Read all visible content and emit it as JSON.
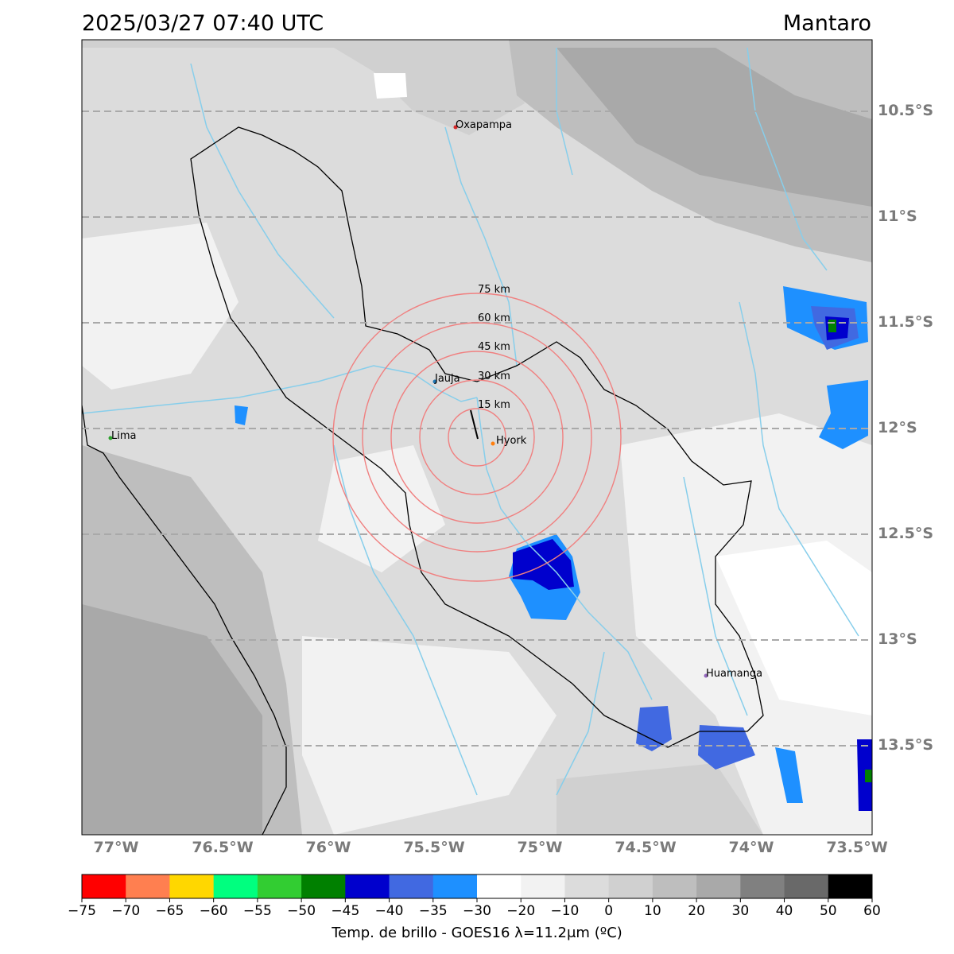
{
  "title": {
    "datetime": "2025/03/27 07:40 UTC",
    "region": "Mantaro"
  },
  "lat_labels": [
    "10.5°S",
    "11°S",
    "11.5°S",
    "12°S",
    "12.5°S",
    "13°S",
    "13.5°S"
  ],
  "lon_labels": [
    "77°W",
    "76.5°W",
    "76°W",
    "75.5°W",
    "75°W",
    "74.5°W",
    "74°W",
    "73.5°W"
  ],
  "cities": [
    {
      "name": "Oxapampa",
      "color": "#d62728"
    },
    {
      "name": "Jauja",
      "color": "#1f77b4"
    },
    {
      "name": "Hyork",
      "color": "#ff7f0e"
    },
    {
      "name": "Lima",
      "color": "#2ca02c"
    },
    {
      "name": "Huamanga",
      "color": "#9467bd"
    }
  ],
  "rings": [
    "15 km",
    "30 km",
    "45 km",
    "60 km",
    "75 km"
  ],
  "colorbar": {
    "ticks": [
      "−75",
      "−70",
      "−65",
      "−60",
      "−55",
      "−50",
      "−45",
      "−40",
      "−35",
      "−30",
      "−20",
      "−10",
      "0",
      "10",
      "20",
      "30",
      "40",
      "50",
      "60"
    ],
    "colors": [
      "#ff0000",
      "#ff7f50",
      "#ffd700",
      "#00ff7f",
      "#32cd32",
      "#008000",
      "#0000cd",
      "#4169e1",
      "#1e90ff",
      "#ffffff",
      "#f2f2f2",
      "#dcdcdc",
      "#d0d0d0",
      "#bebebe",
      "#a9a9a9",
      "#808080",
      "#696969",
      "#000000"
    ],
    "label": "Temp. de brillo - GOES16 λ=11.2μm (ºC)"
  },
  "colors": {
    "river": "#87ceeb",
    "grid": "#a9a9a9",
    "ring": "#f08080"
  }
}
